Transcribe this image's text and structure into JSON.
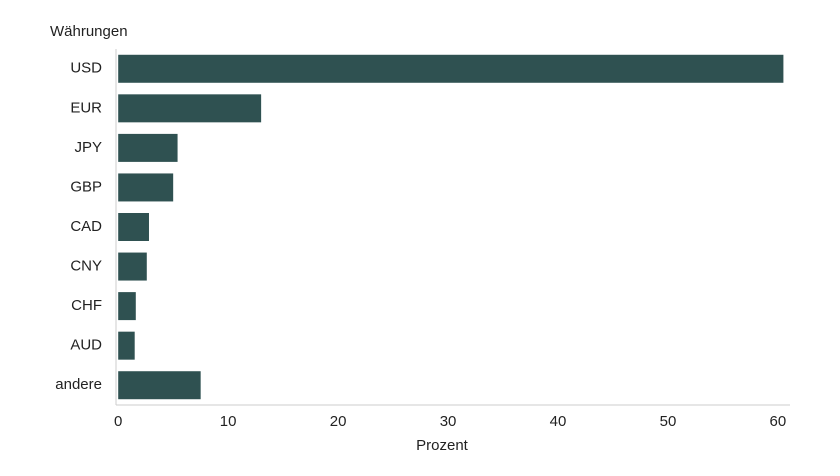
{
  "chart_data": {
    "type": "barh",
    "y_axis_title": "Währungen",
    "x_axis_title": "Prozent",
    "categories": [
      "USD",
      "EUR",
      "JPY",
      "GBP",
      "CAD",
      "CNY",
      "CHF",
      "AUD",
      "andere"
    ],
    "values": [
      60.5,
      13,
      5.4,
      5,
      2.8,
      2.6,
      1.6,
      1.5,
      7.5
    ],
    "color": "#2f5151",
    "xlim": [
      -0.2,
      61.1
    ],
    "xticks": [
      0,
      10,
      20,
      30,
      40,
      50,
      60
    ],
    "grid": false
  }
}
